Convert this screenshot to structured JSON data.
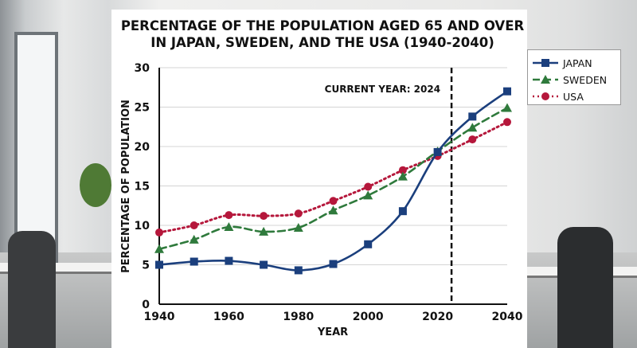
{
  "chart_data": {
    "type": "line",
    "title": "PERCENTAGE OF THE POPULATION AGED 65 AND OVER",
    "subtitle": "IN JAPAN, SWEDEN, AND THE USA (1940-2040)",
    "xlabel": "YEAR",
    "ylabel": "PERCENTAGE OF POPULATION",
    "xlim": [
      1940,
      2040
    ],
    "ylim": [
      0,
      30
    ],
    "x": [
      1940,
      1950,
      1960,
      1970,
      1980,
      1990,
      2000,
      2010,
      2020,
      2030,
      2040
    ],
    "xticks": [
      "1940",
      "1960",
      "1980",
      "2000",
      "2020",
      "2040"
    ],
    "yticks": [
      "0",
      "5",
      "10",
      "15",
      "20",
      "25",
      "30"
    ],
    "grid": true,
    "legend_position": "top-right",
    "annotation": {
      "label": "CURRENT YEAR: 2024",
      "x": 2024
    },
    "series": [
      {
        "name": "JAPAN",
        "color": "#1b3f7d",
        "style": "solid",
        "marker": "square",
        "values": [
          5.0,
          5.4,
          5.5,
          5.0,
          4.3,
          5.1,
          7.6,
          11.8,
          19.3,
          23.8,
          27.0
        ]
      },
      {
        "name": "SWEDEN",
        "color": "#2f7a3c",
        "style": "dashed",
        "marker": "triangle",
        "values": [
          7.0,
          8.2,
          9.8,
          9.2,
          9.7,
          11.9,
          13.8,
          16.2,
          19.4,
          22.4,
          24.9
        ]
      },
      {
        "name": "USA",
        "color": "#b5173b",
        "style": "dotted",
        "marker": "circle",
        "values": [
          9.1,
          10.0,
          11.3,
          11.2,
          11.5,
          13.1,
          14.9,
          17.0,
          18.8,
          20.9,
          23.1
        ]
      }
    ]
  }
}
